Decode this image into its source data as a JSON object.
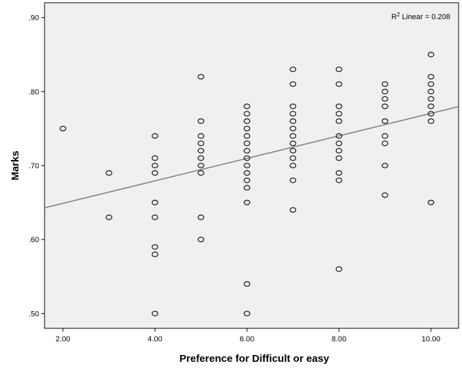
{
  "chart_data": {
    "type": "scatter",
    "title": "",
    "xlabel": "Preference for Difficult or easy",
    "ylabel": "Marks",
    "xlim": [
      1.6,
      10.6
    ],
    "ylim": [
      0.48,
      0.92
    ],
    "x_ticks": [
      2,
      4,
      6,
      8,
      10
    ],
    "x_tick_labels": [
      "2.00",
      "4.00",
      "6.00",
      "8.00",
      "10.00"
    ],
    "y_ticks": [
      0.5,
      0.6,
      0.7,
      0.8,
      0.9
    ],
    "y_tick_labels": [
      ".50",
      ".60",
      ".70",
      ".80",
      ".90"
    ],
    "annotation": {
      "prefix": "R",
      "superscript": "2",
      "suffix": " Linear = 0.208"
    },
    "fit_line": {
      "intercept": 0.6185,
      "slope": 0.0152
    },
    "grid": false,
    "colors": {
      "plot_background": "#f0f0f0",
      "marker_stroke": "#222222",
      "fit_line": "#808080",
      "axis": "#000000"
    },
    "points": [
      {
        "x": 2,
        "y": 0.75
      },
      {
        "x": 3,
        "y": 0.69
      },
      {
        "x": 3,
        "y": 0.63
      },
      {
        "x": 4,
        "y": 0.74
      },
      {
        "x": 4,
        "y": 0.71
      },
      {
        "x": 4,
        "y": 0.7
      },
      {
        "x": 4,
        "y": 0.69
      },
      {
        "x": 4,
        "y": 0.65
      },
      {
        "x": 4,
        "y": 0.63
      },
      {
        "x": 4,
        "y": 0.59
      },
      {
        "x": 4,
        "y": 0.58
      },
      {
        "x": 4,
        "y": 0.5
      },
      {
        "x": 5,
        "y": 0.82
      },
      {
        "x": 5,
        "y": 0.76
      },
      {
        "x": 5,
        "y": 0.74
      },
      {
        "x": 5,
        "y": 0.73
      },
      {
        "x": 5,
        "y": 0.72
      },
      {
        "x": 5,
        "y": 0.71
      },
      {
        "x": 5,
        "y": 0.7
      },
      {
        "x": 5,
        "y": 0.69
      },
      {
        "x": 5,
        "y": 0.63
      },
      {
        "x": 5,
        "y": 0.6
      },
      {
        "x": 6,
        "y": 0.78
      },
      {
        "x": 6,
        "y": 0.77
      },
      {
        "x": 6,
        "y": 0.76
      },
      {
        "x": 6,
        "y": 0.75
      },
      {
        "x": 6,
        "y": 0.74
      },
      {
        "x": 6,
        "y": 0.73
      },
      {
        "x": 6,
        "y": 0.72
      },
      {
        "x": 6,
        "y": 0.71
      },
      {
        "x": 6,
        "y": 0.7
      },
      {
        "x": 6,
        "y": 0.69
      },
      {
        "x": 6,
        "y": 0.68
      },
      {
        "x": 6,
        "y": 0.67
      },
      {
        "x": 6,
        "y": 0.65
      },
      {
        "x": 6,
        "y": 0.54
      },
      {
        "x": 6,
        "y": 0.5
      },
      {
        "x": 7,
        "y": 0.83
      },
      {
        "x": 7,
        "y": 0.81
      },
      {
        "x": 7,
        "y": 0.78
      },
      {
        "x": 7,
        "y": 0.77
      },
      {
        "x": 7,
        "y": 0.76
      },
      {
        "x": 7,
        "y": 0.75
      },
      {
        "x": 7,
        "y": 0.74
      },
      {
        "x": 7,
        "y": 0.73
      },
      {
        "x": 7,
        "y": 0.72
      },
      {
        "x": 7,
        "y": 0.71
      },
      {
        "x": 7,
        "y": 0.7
      },
      {
        "x": 7,
        "y": 0.68
      },
      {
        "x": 7,
        "y": 0.64
      },
      {
        "x": 8,
        "y": 0.83
      },
      {
        "x": 8,
        "y": 0.81
      },
      {
        "x": 8,
        "y": 0.78
      },
      {
        "x": 8,
        "y": 0.77
      },
      {
        "x": 8,
        "y": 0.76
      },
      {
        "x": 8,
        "y": 0.74
      },
      {
        "x": 8,
        "y": 0.73
      },
      {
        "x": 8,
        "y": 0.72
      },
      {
        "x": 8,
        "y": 0.71
      },
      {
        "x": 8,
        "y": 0.69
      },
      {
        "x": 8,
        "y": 0.68
      },
      {
        "x": 8,
        "y": 0.56
      },
      {
        "x": 9,
        "y": 0.81
      },
      {
        "x": 9,
        "y": 0.8
      },
      {
        "x": 9,
        "y": 0.79
      },
      {
        "x": 9,
        "y": 0.78
      },
      {
        "x": 9,
        "y": 0.76
      },
      {
        "x": 9,
        "y": 0.74
      },
      {
        "x": 9,
        "y": 0.73
      },
      {
        "x": 9,
        "y": 0.7
      },
      {
        "x": 9,
        "y": 0.66
      },
      {
        "x": 10,
        "y": 0.85
      },
      {
        "x": 10,
        "y": 0.82
      },
      {
        "x": 10,
        "y": 0.81
      },
      {
        "x": 10,
        "y": 0.8
      },
      {
        "x": 10,
        "y": 0.79
      },
      {
        "x": 10,
        "y": 0.78
      },
      {
        "x": 10,
        "y": 0.77
      },
      {
        "x": 10,
        "y": 0.76
      },
      {
        "x": 10,
        "y": 0.65
      }
    ]
  }
}
